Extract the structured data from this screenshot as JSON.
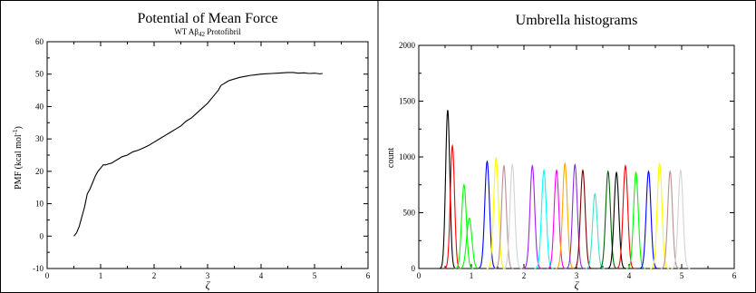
{
  "chart_data": [
    {
      "type": "line",
      "title": "Potential of Mean Force",
      "subtitle": {
        "prefix": "WT Aβ",
        "subscript": "42",
        "suffix": " Protofibril"
      },
      "xlabel": "ζ",
      "ylabel": {
        "prefix": "PMF (kcal mol",
        "superscript": "-1",
        "suffix": ")"
      },
      "xlim": [
        0,
        6
      ],
      "ylim": [
        -10,
        60
      ],
      "xticks": [
        0,
        1,
        2,
        3,
        4,
        5,
        6
      ],
      "yticks": [
        -10,
        0,
        10,
        20,
        30,
        40,
        50,
        60
      ],
      "xtick_labels": [
        "0",
        "1",
        "2",
        "3",
        "4",
        "5",
        "6"
      ],
      "ytick_labels": [
        "-10",
        "0",
        "10",
        "20",
        "30",
        "40",
        "50",
        "60"
      ],
      "grid": false,
      "series": [
        {
          "color": "#000000",
          "x": [
            0.5,
            0.55,
            0.6,
            0.65,
            0.7,
            0.75,
            0.8,
            0.85,
            0.9,
            0.95,
            1.0,
            1.05,
            1.1,
            1.15,
            1.2,
            1.3,
            1.4,
            1.5,
            1.6,
            1.7,
            1.8,
            1.9,
            2.0,
            2.1,
            2.2,
            2.3,
            2.4,
            2.5,
            2.6,
            2.7,
            2.8,
            2.9,
            3.0,
            3.1,
            3.2,
            3.25,
            3.3,
            3.35,
            3.4,
            3.5,
            3.6,
            3.7,
            3.8,
            3.9,
            4.0,
            4.1,
            4.2,
            4.3,
            4.4,
            4.5,
            4.6,
            4.7,
            4.8,
            4.9,
            5.0,
            5.1,
            5.15
          ],
          "y": [
            0,
            1,
            3,
            6,
            9,
            13,
            14.5,
            16.5,
            18.5,
            20,
            21,
            22,
            22,
            22.3,
            22.5,
            23.5,
            24.5,
            25,
            26,
            26.5,
            27.2,
            28,
            29,
            30,
            31,
            32,
            33,
            34,
            35.5,
            36.5,
            38,
            39.5,
            41,
            43,
            45,
            46.5,
            47,
            47.5,
            48,
            48.5,
            49,
            49.3,
            49.6,
            49.8,
            50,
            50.1,
            50.2,
            50.3,
            50.4,
            50.5,
            50.5,
            50.3,
            50.4,
            50.2,
            50.3,
            50.1,
            50.2
          ]
        }
      ]
    },
    {
      "type": "line",
      "title": "Umbrella histograms",
      "xlabel": "ζ",
      "ylabel": "count",
      "xlim": [
        0,
        6
      ],
      "ylim": [
        0,
        2000
      ],
      "xticks": [
        0,
        1,
        2,
        3,
        4,
        5,
        6
      ],
      "yticks": [
        0,
        500,
        1000,
        1500,
        2000
      ],
      "xtick_labels": [
        "0",
        "1",
        "2",
        "3",
        "4",
        "5",
        "6"
      ],
      "ytick_labels": [
        "0",
        "500",
        "1000",
        "1500",
        "2000"
      ],
      "grid": false,
      "series": [
        {
          "color": "#000000",
          "center": 0.55,
          "peak": 1420,
          "sigma": 0.04
        },
        {
          "color": "#ff0000",
          "center": 0.64,
          "peak": 1100,
          "sigma": 0.04
        },
        {
          "color": "#00ff00",
          "center": 0.86,
          "peak": 750,
          "sigma": 0.045
        },
        {
          "color": "#00ff00",
          "center": 0.96,
          "peak": 450,
          "sigma": 0.05
        },
        {
          "color": "#0000ff",
          "center": 1.3,
          "peak": 960,
          "sigma": 0.045
        },
        {
          "color": "#ffff00",
          "center": 1.47,
          "peak": 990,
          "sigma": 0.045
        },
        {
          "color": "#bc8f8f",
          "center": 1.62,
          "peak": 920,
          "sigma": 0.045
        },
        {
          "color": "#d3d3d3",
          "center": 1.78,
          "peak": 930,
          "sigma": 0.045
        },
        {
          "color": "#a020f0",
          "center": 2.16,
          "peak": 920,
          "sigma": 0.045
        },
        {
          "color": "#00ffff",
          "center": 2.38,
          "peak": 880,
          "sigma": 0.045
        },
        {
          "color": "#ff00ff",
          "center": 2.62,
          "peak": 880,
          "sigma": 0.045
        },
        {
          "color": "#ffa500",
          "center": 2.78,
          "peak": 940,
          "sigma": 0.045
        },
        {
          "color": "#8a2be2",
          "center": 2.97,
          "peak": 930,
          "sigma": 0.045
        },
        {
          "color": "#800000",
          "center": 3.12,
          "peak": 880,
          "sigma": 0.045
        },
        {
          "color": "#40e0d0",
          "center": 3.35,
          "peak": 670,
          "sigma": 0.045
        },
        {
          "color": "#006400",
          "center": 3.6,
          "peak": 870,
          "sigma": 0.045
        },
        {
          "color": "#000000",
          "center": 3.76,
          "peak": 860,
          "sigma": 0.045
        },
        {
          "color": "#ff0000",
          "center": 3.93,
          "peak": 920,
          "sigma": 0.045
        },
        {
          "color": "#00ff00",
          "center": 4.13,
          "peak": 860,
          "sigma": 0.045
        },
        {
          "color": "#0000ff",
          "center": 4.37,
          "peak": 870,
          "sigma": 0.045
        },
        {
          "color": "#ffff00",
          "center": 4.58,
          "peak": 940,
          "sigma": 0.045
        },
        {
          "color": "#bc8f8f",
          "center": 4.78,
          "peak": 870,
          "sigma": 0.045
        },
        {
          "color": "#d3d3d3",
          "center": 4.98,
          "peak": 880,
          "sigma": 0.045
        }
      ]
    }
  ]
}
